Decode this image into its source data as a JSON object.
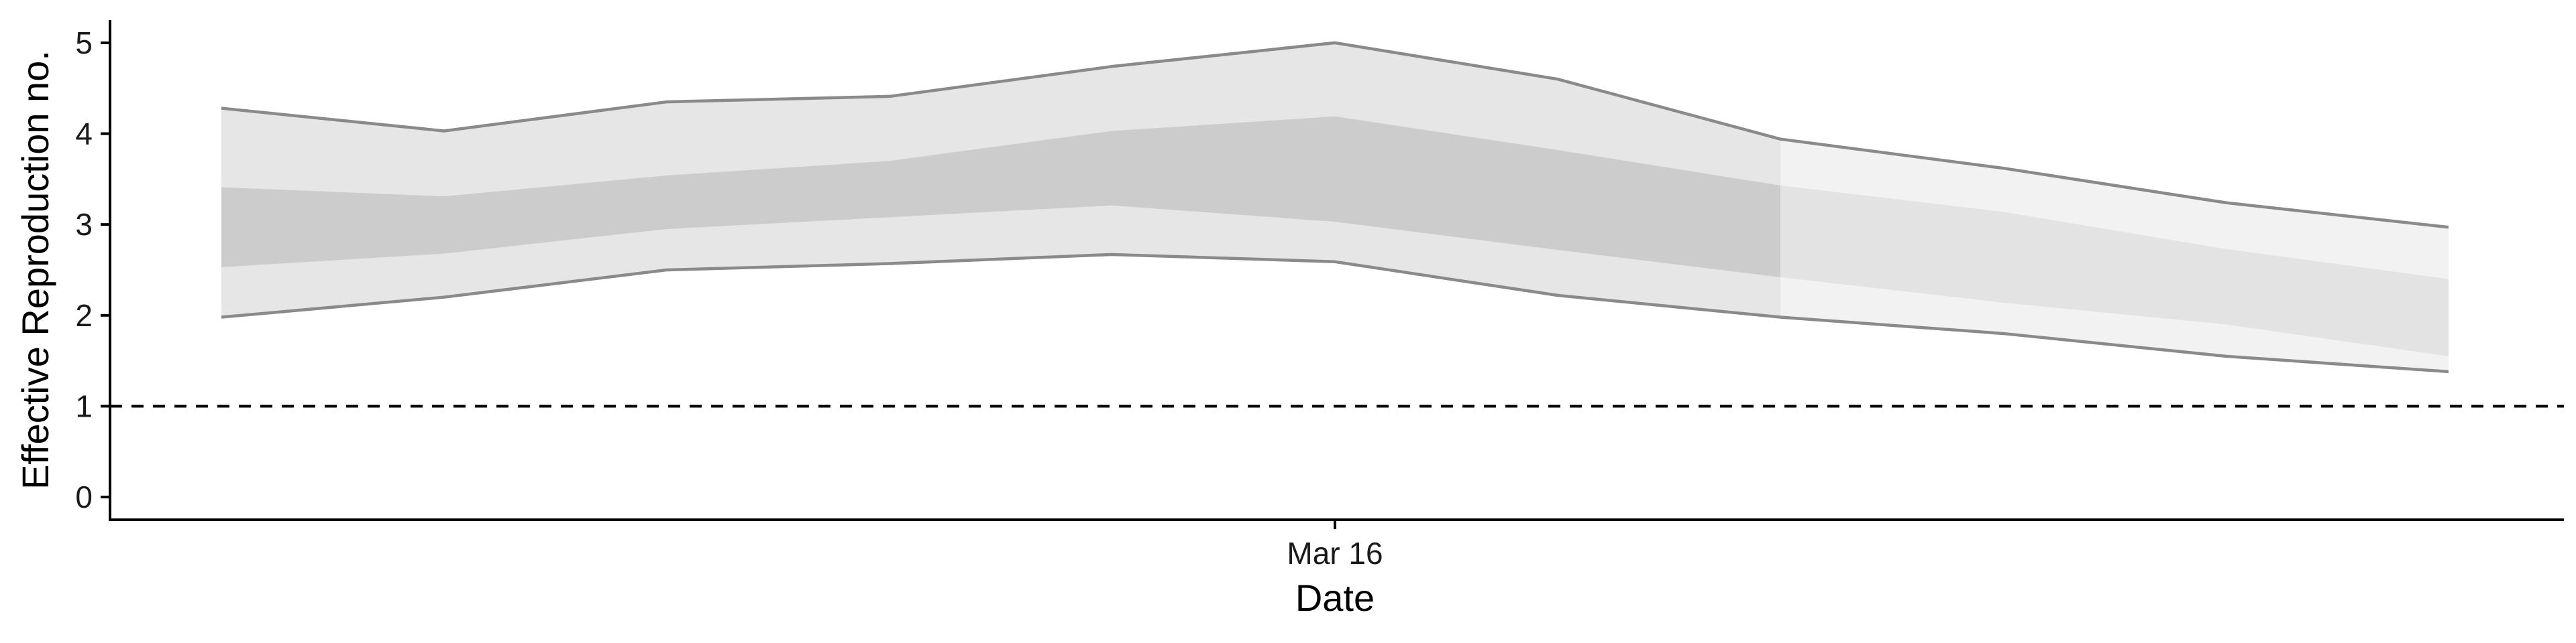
{
  "chart_data": {
    "type": "area",
    "title": "",
    "xlabel": "Date",
    "ylabel": "Effective Reproduction no.",
    "x_tick_labels": [
      {
        "label": "Mar 16",
        "index": 5
      }
    ],
    "y_ticks": [
      0,
      1,
      2,
      3,
      4,
      5
    ],
    "ylim": [
      -0.25,
      5.25
    ],
    "reference_line": {
      "y": 1,
      "style": "dashed"
    },
    "grid": false,
    "legend": "none",
    "x": [
      1,
      2,
      3,
      4,
      5,
      6,
      7,
      8,
      9,
      10,
      11
    ],
    "series": [
      {
        "role": "outer interval (90%)",
        "lower": [
          1.98,
          2.2,
          2.5,
          2.57,
          2.67,
          2.59,
          2.22,
          1.98,
          1.8,
          1.55,
          1.38
        ],
        "upper": [
          4.28,
          4.03,
          4.35,
          4.41,
          4.74,
          5.0,
          4.6,
          3.94,
          3.62,
          3.24,
          2.97
        ]
      },
      {
        "role": "inner interval (50%)",
        "lower": [
          2.53,
          2.68,
          2.95,
          3.08,
          3.21,
          3.03,
          2.72,
          2.42,
          2.14,
          1.9,
          1.55
        ],
        "upper": [
          3.41,
          3.31,
          3.54,
          3.7,
          4.03,
          4.19,
          3.82,
          3.43,
          3.14,
          2.73,
          2.4
        ]
      }
    ],
    "colors": {
      "outer_band": "#e6e6e6",
      "inner_band": "#cccccc",
      "outer_band_late": "#f2f2f2",
      "inner_band_late": "#e3e3e3",
      "bound_line": "#8a8a8a"
    }
  }
}
